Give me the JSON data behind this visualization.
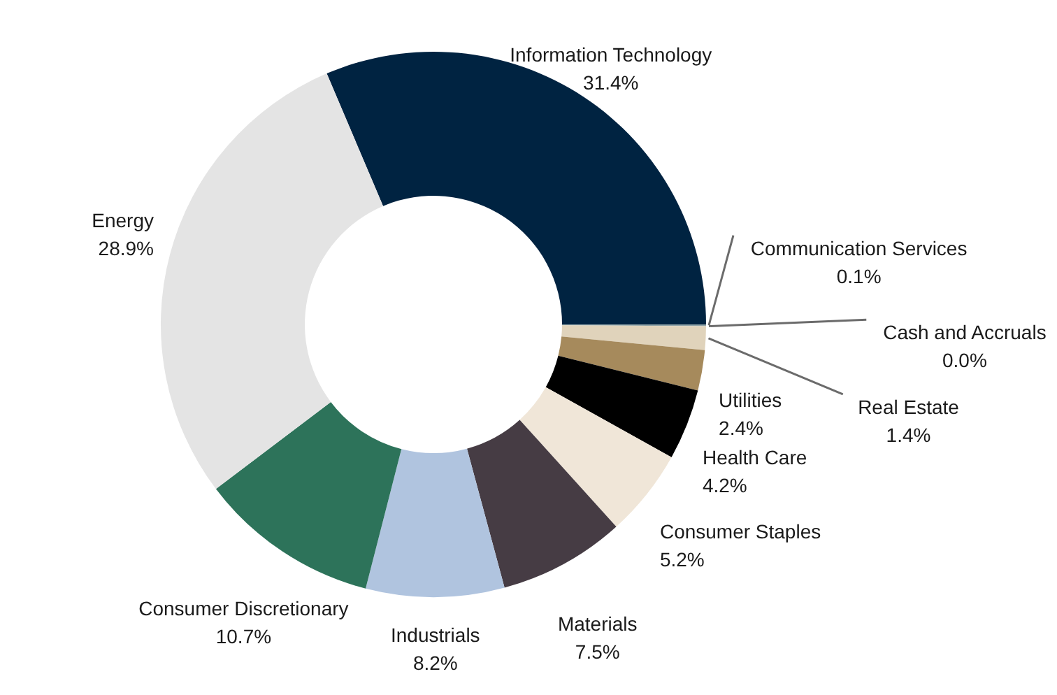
{
  "chart_data": {
    "type": "donut",
    "categories": [
      "Information Technology",
      "Communication Services",
      "Cash and Accruals",
      "Real Estate",
      "Utilities",
      "Health Care",
      "Consumer Staples",
      "Materials",
      "Industrials",
      "Consumer Discretionary",
      "Energy"
    ],
    "values": [
      31.4,
      0.1,
      0.0,
      1.4,
      2.4,
      4.2,
      5.2,
      7.5,
      8.2,
      10.7,
      28.9
    ],
    "value_labels": [
      "31.4%",
      "0.1%",
      "0.0%",
      "1.4%",
      "2.4%",
      "4.2%",
      "5.2%",
      "7.5%",
      "8.2%",
      "10.7%",
      "28.9%"
    ],
    "colors": [
      "#002341",
      "#8fa3a8",
      "#b8c4c4",
      "#e0d3bb",
      "#a68a5c",
      "#000000",
      "#f0e6d8",
      "#463c44",
      "#b0c4df",
      "#2d735a",
      "#e4e4e4"
    ]
  }
}
